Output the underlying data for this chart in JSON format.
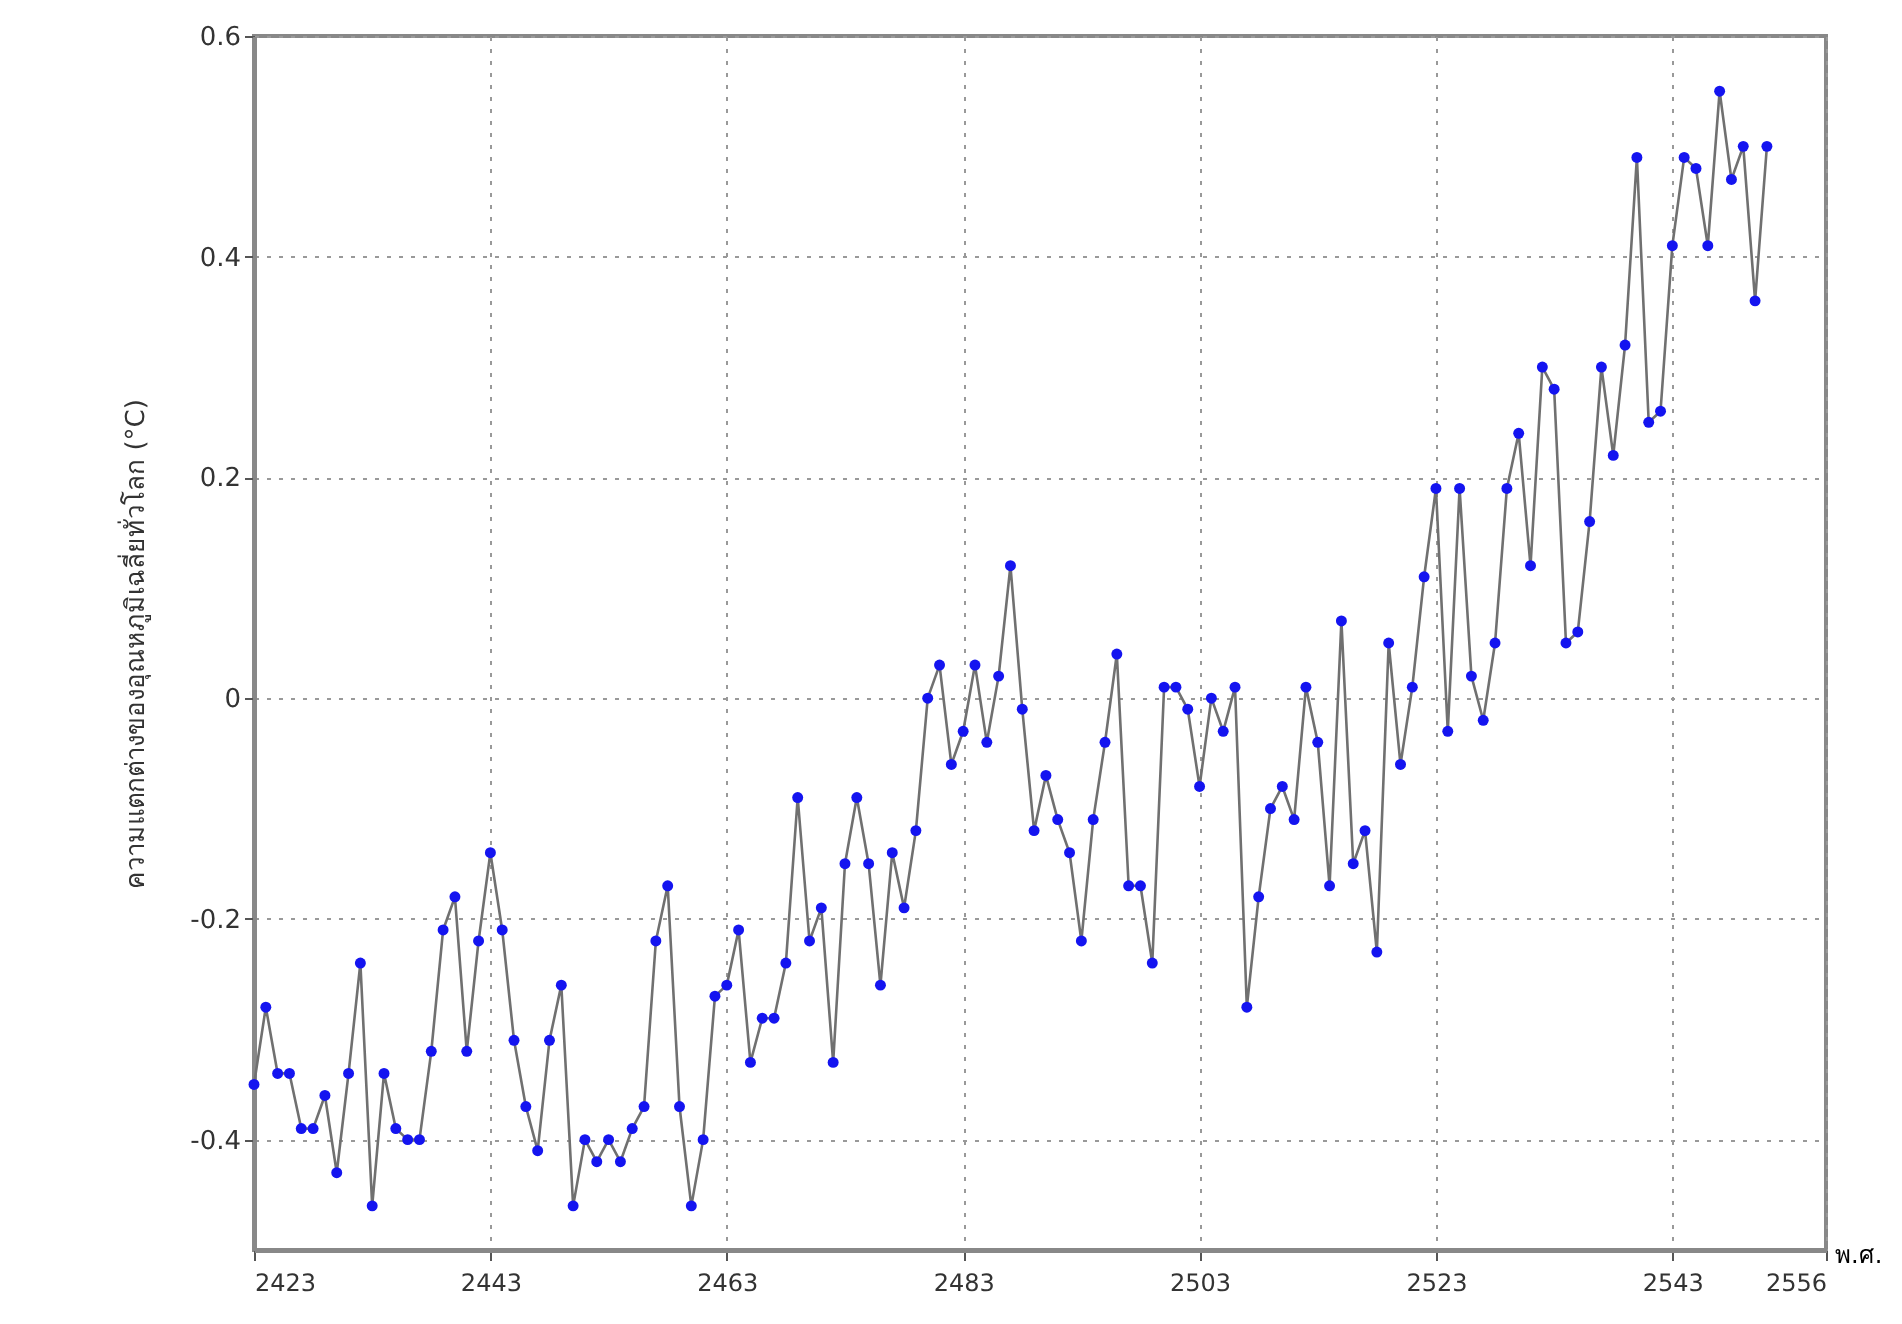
{
  "chart_data": {
    "type": "line",
    "xlabel": "พ.ศ.",
    "ylabel": "ความแตกต่างของอุณหภูมิเฉลี่ยทั่วโลก (°C)",
    "xlim": [
      2423,
      2556
    ],
    "xticks": [
      2423,
      2443,
      2463,
      2483,
      2503,
      2523,
      2543,
      2556
    ],
    "ylim": [
      -0.5,
      0.6
    ],
    "yticks": [
      -0.4,
      -0.2,
      0,
      0.2,
      0.4,
      0.6
    ],
    "grid": true,
    "marker": "circle",
    "line_style": "solid",
    "series": [
      {
        "color": "#1414f0",
        "x": [
          2423,
          2424,
          2425,
          2426,
          2427,
          2428,
          2429,
          2430,
          2431,
          2432,
          2433,
          2434,
          2435,
          2436,
          2437,
          2438,
          2439,
          2440,
          2441,
          2442,
          2443,
          2444,
          2445,
          2446,
          2447,
          2448,
          2449,
          2450,
          2451,
          2452,
          2453,
          2454,
          2455,
          2456,
          2457,
          2458,
          2459,
          2460,
          2461,
          2462,
          2463,
          2464,
          2465,
          2466,
          2467,
          2468,
          2469,
          2470,
          2471,
          2472,
          2473,
          2474,
          2475,
          2476,
          2477,
          2478,
          2479,
          2480,
          2481,
          2482,
          2483,
          2484,
          2485,
          2486,
          2487,
          2488,
          2489,
          2490,
          2491,
          2492,
          2493,
          2494,
          2495,
          2496,
          2497,
          2498,
          2499,
          2500,
          2501,
          2502,
          2503,
          2504,
          2505,
          2506,
          2507,
          2508,
          2509,
          2510,
          2511,
          2512,
          2513,
          2514,
          2515,
          2516,
          2517,
          2518,
          2519,
          2520,
          2521,
          2522,
          2523,
          2524,
          2525,
          2526,
          2527,
          2528,
          2529,
          2530,
          2531,
          2532,
          2533,
          2534,
          2535,
          2536,
          2537,
          2538,
          2539,
          2540,
          2541,
          2542,
          2543,
          2544,
          2545,
          2546,
          2547,
          2548,
          2549,
          2550,
          2551
        ],
        "values": [
          -0.35,
          -0.28,
          -0.34,
          -0.34,
          -0.39,
          -0.39,
          -0.36,
          -0.43,
          -0.34,
          -0.24,
          -0.46,
          -0.34,
          -0.39,
          -0.4,
          -0.4,
          -0.32,
          -0.21,
          -0.18,
          -0.32,
          -0.22,
          -0.14,
          -0.21,
          -0.31,
          -0.37,
          -0.41,
          -0.31,
          -0.26,
          -0.46,
          -0.4,
          -0.42,
          -0.4,
          -0.42,
          -0.39,
          -0.37,
          -0.22,
          -0.17,
          -0.37,
          -0.46,
          -0.4,
          -0.27,
          -0.26,
          -0.21,
          -0.33,
          -0.29,
          -0.29,
          -0.24,
          -0.09,
          -0.22,
          -0.19,
          -0.33,
          -0.15,
          -0.09,
          -0.15,
          -0.26,
          -0.14,
          -0.19,
          -0.12,
          0.0,
          0.03,
          -0.06,
          -0.03,
          0.03,
          -0.04,
          0.02,
          0.12,
          -0.01,
          -0.12,
          -0.07,
          -0.11,
          -0.14,
          -0.22,
          -0.11,
          -0.04,
          0.04,
          -0.17,
          -0.17,
          -0.24,
          0.01,
          0.01,
          -0.01,
          -0.08,
          0.0,
          -0.03,
          0.01,
          -0.28,
          -0.18,
          -0.1,
          -0.08,
          -0.11,
          0.01,
          -0.04,
          -0.17,
          0.07,
          -0.15,
          -0.12,
          -0.23,
          0.05,
          -0.06,
          0.01,
          0.11,
          0.19,
          -0.03,
          0.19,
          0.02,
          -0.02,
          0.05,
          0.19,
          0.24,
          0.12,
          0.3,
          0.28,
          0.05,
          0.06,
          0.16,
          0.3,
          0.22,
          0.32,
          0.49,
          0.25,
          0.26,
          0.41,
          0.49,
          0.48,
          0.41,
          0.55,
          0.47,
          0.5,
          0.36,
          0.5
        ]
      }
    ]
  }
}
